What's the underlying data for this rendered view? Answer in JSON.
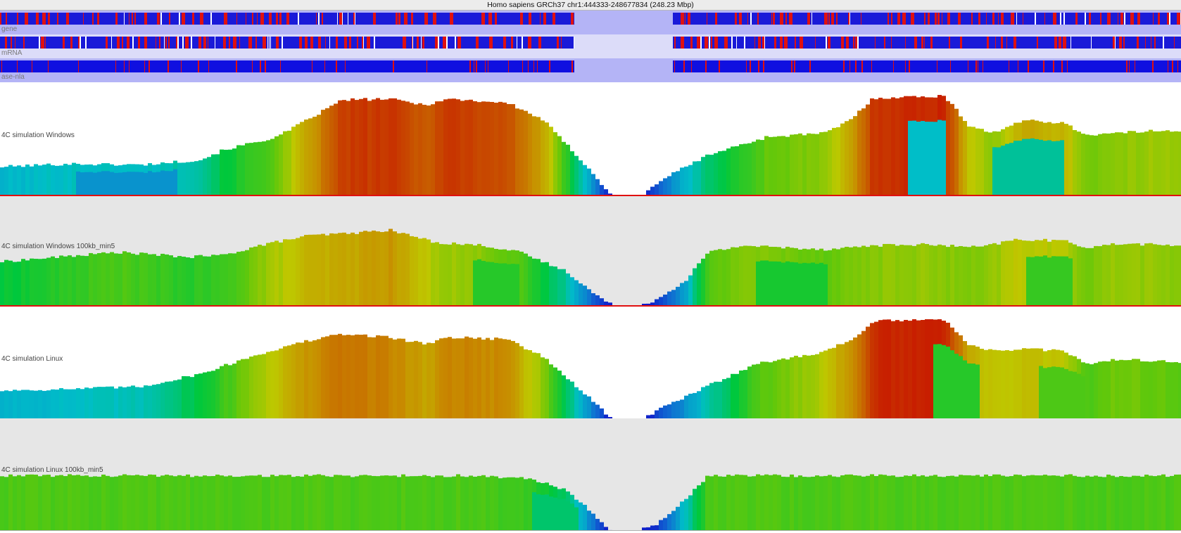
{
  "header": {
    "title": "Homo sapiens GRCh37 chr1:444333-248677834 (248.23 Mbp)"
  },
  "annotation_tracks": [
    {
      "key": "gene",
      "label": "gene",
      "bg": "#b4b4f6",
      "gap_bg": "#b4b4f6",
      "base": "#1a1ad8",
      "mark": "#e01010",
      "red_ratio": 0.3,
      "seed": 11
    },
    {
      "key": "mrna",
      "label": "mRNA",
      "bg": "#dcdcf9",
      "gap_bg": "#dcdcf9",
      "base": "#1a1ad8",
      "mark": "#e01010",
      "red_ratio": 0.28,
      "seed": 23
    },
    {
      "key": "ase",
      "label": "ase-nla",
      "bg": "#b4b4f6",
      "gap_bg": "#b4b4f6",
      "base": "#1010e0",
      "mark": "#e01010",
      "red_ratio": 0.16,
      "seed": 37
    }
  ],
  "signal_tracks": [
    {
      "key": "win",
      "label": "4C simulation Windows",
      "bg": "#ffffff",
      "profile": [
        [
          0,
          0.28
        ],
        [
          0.06,
          0.31
        ],
        [
          0.12,
          0.3
        ],
        [
          0.17,
          0.35
        ],
        [
          0.19,
          0.45
        ],
        [
          0.235,
          0.58
        ],
        [
          0.265,
          0.78
        ],
        [
          0.29,
          0.95
        ],
        [
          0.33,
          0.96
        ],
        [
          0.36,
          0.9
        ],
        [
          0.38,
          0.96
        ],
        [
          0.43,
          0.92
        ],
        [
          0.46,
          0.75
        ],
        [
          0.5,
          0.25
        ],
        [
          0.515,
          0.02
        ],
        [
          0.522,
          0.0
        ],
        [
          0.545,
          0.0
        ],
        [
          0.56,
          0.15
        ],
        [
          0.6,
          0.4
        ],
        [
          0.65,
          0.58
        ],
        [
          0.7,
          0.62
        ],
        [
          0.72,
          0.75
        ],
        [
          0.74,
          0.97
        ],
        [
          0.8,
          0.99
        ],
        [
          0.82,
          0.7
        ],
        [
          0.84,
          0.62
        ],
        [
          0.87,
          0.75
        ],
        [
          0.9,
          0.72
        ],
        [
          0.92,
          0.6
        ],
        [
          0.95,
          0.62
        ],
        [
          0.99,
          0.65
        ],
        [
          1.0,
          0.63
        ]
      ],
      "dips": [
        [
          0.84,
          0.9,
          0.35
        ],
        [
          0.77,
          0.8,
          0.3
        ],
        [
          0.065,
          0.15,
          0.22
        ]
      ]
    },
    {
      "key": "win100",
      "label": "4C simulation Windows 100kb_min5",
      "bg": "#e6e6e6",
      "profile": [
        [
          0,
          0.45
        ],
        [
          0.05,
          0.5
        ],
        [
          0.1,
          0.55
        ],
        [
          0.16,
          0.5
        ],
        [
          0.19,
          0.52
        ],
        [
          0.22,
          0.62
        ],
        [
          0.26,
          0.72
        ],
        [
          0.3,
          0.75
        ],
        [
          0.33,
          0.78
        ],
        [
          0.37,
          0.65
        ],
        [
          0.41,
          0.62
        ],
        [
          0.44,
          0.55
        ],
        [
          0.48,
          0.35
        ],
        [
          0.5,
          0.15
        ],
        [
          0.515,
          0.02
        ],
        [
          0.52,
          0.0
        ],
        [
          0.54,
          0.0
        ],
        [
          0.555,
          0.05
        ],
        [
          0.58,
          0.25
        ],
        [
          0.6,
          0.55
        ],
        [
          0.63,
          0.62
        ],
        [
          0.66,
          0.6
        ],
        [
          0.7,
          0.58
        ],
        [
          0.74,
          0.62
        ],
        [
          0.78,
          0.63
        ],
        [
          0.83,
          0.6
        ],
        [
          0.86,
          0.68
        ],
        [
          0.9,
          0.67
        ],
        [
          0.92,
          0.6
        ],
        [
          0.95,
          0.64
        ],
        [
          1.0,
          0.62
        ]
      ],
      "dips": [
        [
          0.4,
          0.44,
          0.5
        ],
        [
          0.87,
          0.91,
          0.52
        ],
        [
          0.64,
          0.7,
          0.48
        ]
      ]
    },
    {
      "key": "lin",
      "label": "4C simulation Linux",
      "bg": "#ffffff",
      "profile": [
        [
          0,
          0.28
        ],
        [
          0.07,
          0.3
        ],
        [
          0.12,
          0.32
        ],
        [
          0.17,
          0.45
        ],
        [
          0.22,
          0.65
        ],
        [
          0.26,
          0.78
        ],
        [
          0.29,
          0.85
        ],
        [
          0.33,
          0.82
        ],
        [
          0.36,
          0.75
        ],
        [
          0.38,
          0.82
        ],
        [
          0.43,
          0.8
        ],
        [
          0.46,
          0.62
        ],
        [
          0.5,
          0.2
        ],
        [
          0.515,
          0.02
        ],
        [
          0.52,
          0.0
        ],
        [
          0.545,
          0.0
        ],
        [
          0.56,
          0.1
        ],
        [
          0.6,
          0.33
        ],
        [
          0.64,
          0.55
        ],
        [
          0.69,
          0.65
        ],
        [
          0.72,
          0.78
        ],
        [
          0.74,
          0.98
        ],
        [
          0.8,
          1.0
        ],
        [
          0.82,
          0.75
        ],
        [
          0.84,
          0.68
        ],
        [
          0.87,
          0.7
        ],
        [
          0.9,
          0.68
        ],
        [
          0.92,
          0.55
        ],
        [
          0.95,
          0.6
        ],
        [
          0.98,
          0.58
        ],
        [
          1.0,
          0.55
        ]
      ],
      "dips": [
        [
          0.79,
          0.83,
          0.5
        ],
        [
          0.88,
          0.92,
          0.55
        ]
      ]
    },
    {
      "key": "lin100",
      "label": "4C simulation Linux 100kb_min5",
      "bg": "#e6e6e6",
      "profile": [
        [
          0,
          0.55
        ],
        [
          0.1,
          0.55
        ],
        [
          0.2,
          0.55
        ],
        [
          0.3,
          0.55
        ],
        [
          0.4,
          0.55
        ],
        [
          0.45,
          0.52
        ],
        [
          0.48,
          0.4
        ],
        [
          0.5,
          0.2
        ],
        [
          0.515,
          0.02
        ],
        [
          0.52,
          0.0
        ],
        [
          0.54,
          0.0
        ],
        [
          0.555,
          0.05
        ],
        [
          0.58,
          0.3
        ],
        [
          0.6,
          0.55
        ],
        [
          0.7,
          0.55
        ],
        [
          0.8,
          0.55
        ],
        [
          0.9,
          0.55
        ],
        [
          1.0,
          0.55
        ]
      ],
      "dips": [
        [
          0.45,
          0.49,
          0.4
        ]
      ]
    }
  ]
}
